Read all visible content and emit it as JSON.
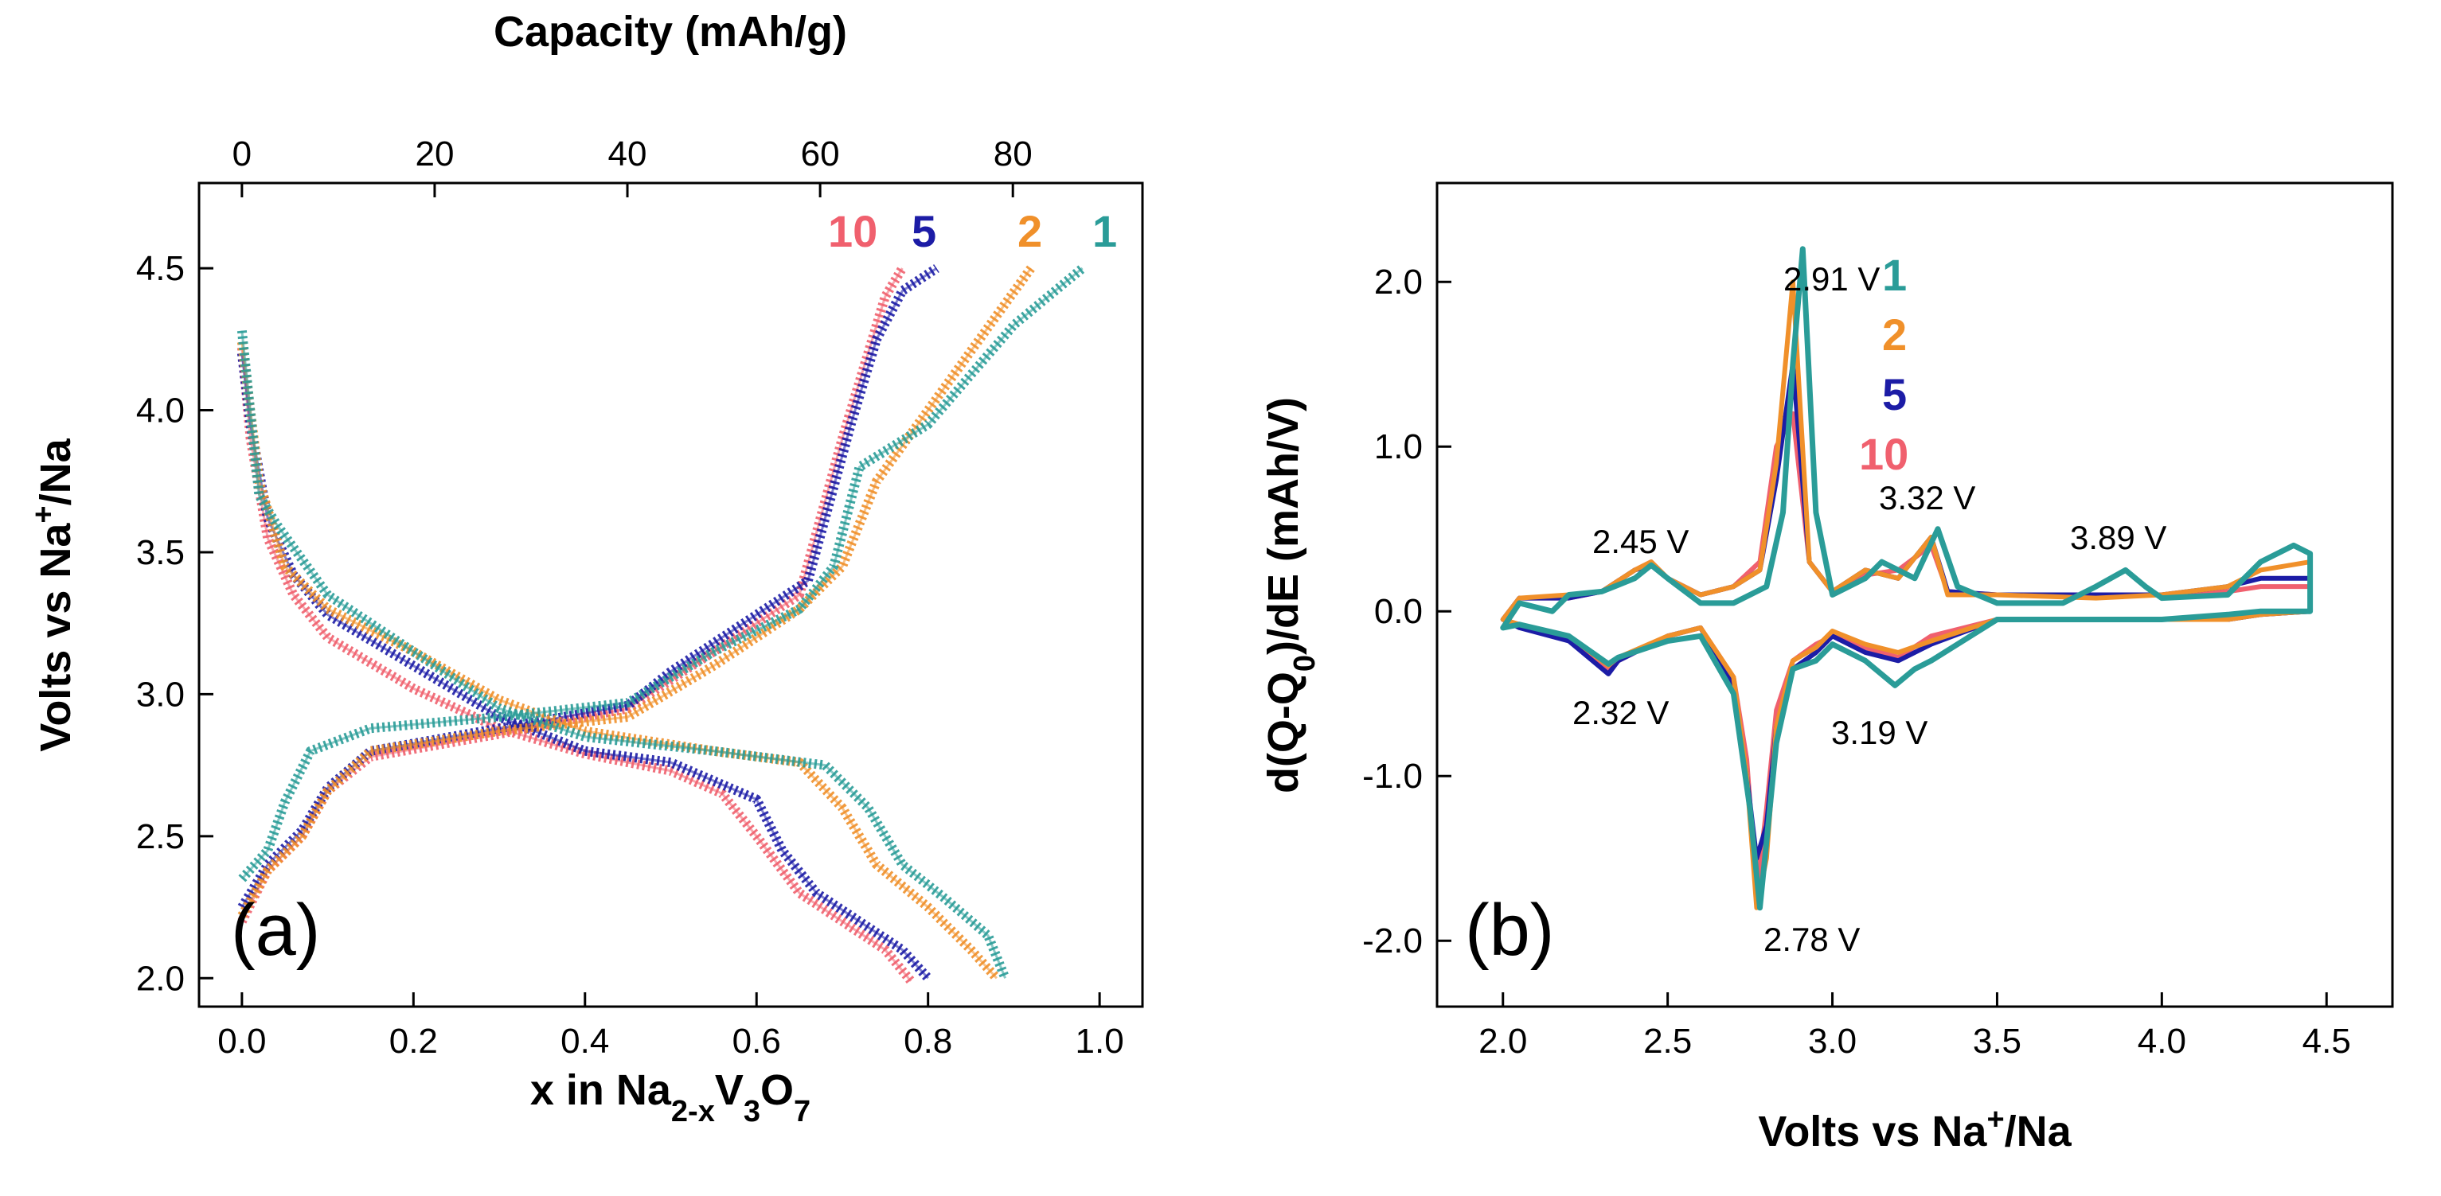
{
  "chart_data": [
    {
      "type": "scatter",
      "panel_label": "(a)",
      "title": "",
      "xlabel": {
        "pre": "x in Na",
        "sub1": "2-x",
        "mid": "V",
        "sub2": "3",
        "mid2": "O",
        "sub3": "7"
      },
      "ylabel": {
        "pre": "Volts vs Na",
        "sup": "+",
        "post": "/Na"
      },
      "x2label": "Capacity (mAh/g)",
      "xlim": [
        -0.05,
        1.05
      ],
      "ylim": [
        1.9,
        4.8
      ],
      "x2lim": [
        -4.45,
        93.45
      ],
      "xticks": [
        "0.0",
        "0.2",
        "0.4",
        "0.6",
        "0.8",
        "1.0"
      ],
      "xtick_values": [
        0.0,
        0.2,
        0.4,
        0.6,
        0.8,
        1.0
      ],
      "yticks": [
        "2.0",
        "2.5",
        "3.0",
        "3.5",
        "4.0",
        "4.5"
      ],
      "ytick_values": [
        2.0,
        2.5,
        3.0,
        3.5,
        4.0,
        4.5
      ],
      "x2ticks": [
        "0",
        "20",
        "40",
        "60",
        "80"
      ],
      "x2tick_values": [
        0,
        20,
        40,
        60,
        80
      ],
      "legend_labels": [
        {
          "text": "10",
          "color": "#f0606e"
        },
        {
          "text": "5",
          "color": "#1c1ca6"
        },
        {
          "text": "2",
          "color": "#f0902a"
        },
        {
          "text": "1",
          "color": "#2a9c98"
        }
      ],
      "series": [
        {
          "name": "10",
          "color": "#f0606e",
          "discharge": [
            [
              0.0,
              4.22
            ],
            [
              0.01,
              3.9
            ],
            [
              0.03,
              3.55
            ],
            [
              0.06,
              3.35
            ],
            [
              0.1,
              3.2
            ],
            [
              0.2,
              3.02
            ],
            [
              0.3,
              2.88
            ],
            [
              0.4,
              2.79
            ],
            [
              0.5,
              2.73
            ],
            [
              0.56,
              2.65
            ],
            [
              0.6,
              2.5
            ],
            [
              0.65,
              2.3
            ],
            [
              0.7,
              2.2
            ],
            [
              0.75,
              2.1
            ],
            [
              0.78,
              1.99
            ]
          ],
          "charge": [
            [
              0.0,
              2.2
            ],
            [
              0.03,
              2.38
            ],
            [
              0.07,
              2.5
            ],
            [
              0.1,
              2.66
            ],
            [
              0.15,
              2.78
            ],
            [
              0.3,
              2.86
            ],
            [
              0.45,
              2.95
            ],
            [
              0.5,
              3.05
            ],
            [
              0.6,
              3.25
            ],
            [
              0.65,
              3.35
            ],
            [
              0.7,
              3.9
            ],
            [
              0.73,
              4.2
            ],
            [
              0.75,
              4.4
            ],
            [
              0.77,
              4.5
            ]
          ]
        },
        {
          "name": "5",
          "color": "#1c1ca6",
          "discharge": [
            [
              0.0,
              4.2
            ],
            [
              0.01,
              3.95
            ],
            [
              0.03,
              3.62
            ],
            [
              0.06,
              3.42
            ],
            [
              0.1,
              3.28
            ],
            [
              0.2,
              3.1
            ],
            [
              0.3,
              2.92
            ],
            [
              0.4,
              2.8
            ],
            [
              0.5,
              2.76
            ],
            [
              0.6,
              2.63
            ],
            [
              0.63,
              2.45
            ],
            [
              0.67,
              2.3
            ],
            [
              0.72,
              2.2
            ],
            [
              0.77,
              2.1
            ],
            [
              0.8,
              2.0
            ]
          ],
          "charge": [
            [
              0.0,
              2.25
            ],
            [
              0.03,
              2.4
            ],
            [
              0.07,
              2.52
            ],
            [
              0.1,
              2.67
            ],
            [
              0.15,
              2.8
            ],
            [
              0.3,
              2.88
            ],
            [
              0.45,
              2.96
            ],
            [
              0.5,
              3.08
            ],
            [
              0.6,
              3.28
            ],
            [
              0.66,
              3.4
            ],
            [
              0.71,
              3.95
            ],
            [
              0.74,
              4.25
            ],
            [
              0.77,
              4.42
            ],
            [
              0.81,
              4.5
            ]
          ]
        },
        {
          "name": "2",
          "color": "#f0902a",
          "discharge": [
            [
              0.0,
              4.24
            ],
            [
              0.02,
              3.75
            ],
            [
              0.05,
              3.45
            ],
            [
              0.1,
              3.3
            ],
            [
              0.2,
              3.15
            ],
            [
              0.3,
              2.98
            ],
            [
              0.4,
              2.87
            ],
            [
              0.55,
              2.8
            ],
            [
              0.65,
              2.76
            ],
            [
              0.7,
              2.6
            ],
            [
              0.74,
              2.4
            ],
            [
              0.8,
              2.25
            ],
            [
              0.85,
              2.1
            ],
            [
              0.88,
              2.0
            ]
          ],
          "charge": [
            [
              0.0,
              2.22
            ],
            [
              0.03,
              2.38
            ],
            [
              0.07,
              2.5
            ],
            [
              0.1,
              2.66
            ],
            [
              0.15,
              2.8
            ],
            [
              0.3,
              2.87
            ],
            [
              0.45,
              2.92
            ],
            [
              0.55,
              3.1
            ],
            [
              0.65,
              3.3
            ],
            [
              0.7,
              3.45
            ],
            [
              0.74,
              3.75
            ],
            [
              0.8,
              4.0
            ],
            [
              0.86,
              4.25
            ],
            [
              0.92,
              4.5
            ]
          ]
        },
        {
          "name": "1",
          "color": "#2a9c98",
          "discharge": [
            [
              0.0,
              4.28
            ],
            [
              0.02,
              3.7
            ],
            [
              0.04,
              3.6
            ],
            [
              0.1,
              3.35
            ],
            [
              0.2,
              3.15
            ],
            [
              0.3,
              2.95
            ],
            [
              0.4,
              2.85
            ],
            [
              0.55,
              2.8
            ],
            [
              0.68,
              2.75
            ],
            [
              0.73,
              2.6
            ],
            [
              0.77,
              2.4
            ],
            [
              0.82,
              2.28
            ],
            [
              0.87,
              2.15
            ],
            [
              0.89,
              2.0
            ]
          ],
          "charge": [
            [
              0.0,
              2.35
            ],
            [
              0.03,
              2.45
            ],
            [
              0.05,
              2.62
            ],
            [
              0.08,
              2.8
            ],
            [
              0.15,
              2.88
            ],
            [
              0.3,
              2.92
            ],
            [
              0.45,
              2.97
            ],
            [
              0.55,
              3.15
            ],
            [
              0.65,
              3.3
            ],
            [
              0.69,
              3.45
            ],
            [
              0.72,
              3.8
            ],
            [
              0.8,
              3.95
            ],
            [
              0.9,
              4.3
            ],
            [
              0.98,
              4.5
            ]
          ]
        }
      ]
    },
    {
      "type": "line",
      "panel_label": "(b)",
      "title": "",
      "xlabel": {
        "pre": "Volts vs Na",
        "sup": "+",
        "post": "/Na"
      },
      "ylabel": {
        "pre": "d(Q-Q",
        "sub": "0",
        "post": ")/dE (mAh/V)"
      },
      "xlim": [
        1.8,
        4.7
      ],
      "ylim": [
        -2.4,
        2.6
      ],
      "xticks": [
        "2.0",
        "2.5",
        "3.0",
        "3.5",
        "4.0",
        "4.5"
      ],
      "xtick_values": [
        2.0,
        2.5,
        3.0,
        3.5,
        4.0,
        4.5
      ],
      "yticks": [
        "-2.0",
        "-1.0",
        "0.0",
        "1.0",
        "2.0"
      ],
      "ytick_values": [
        -2.0,
        -1.0,
        0.0,
        1.0,
        2.0
      ],
      "annotations": [
        {
          "text": "2.91 V",
          "x": 2.91,
          "y": 2.2
        },
        {
          "text": "2.45 V",
          "x": 2.45,
          "y": 0.3
        },
        {
          "text": "3.32 V",
          "x": 3.32,
          "y": 0.5
        },
        {
          "text": "3.89 V",
          "x": 3.89,
          "y": 0.25
        },
        {
          "text": "2.32 V",
          "x": 2.32,
          "y": -0.35
        },
        {
          "text": "3.19 V",
          "x": 3.19,
          "y": -0.45
        },
        {
          "text": "2.78 V",
          "x": 2.78,
          "y": -1.8
        }
      ],
      "legend_labels": [
        {
          "text": "1",
          "color": "#2a9c98"
        },
        {
          "text": "2",
          "color": "#f0902a"
        },
        {
          "text": "5",
          "color": "#1c1ca6"
        },
        {
          "text": "10",
          "color": "#f0606e"
        }
      ],
      "series": [
        {
          "name": "10",
          "color": "#f0606e",
          "x": [
            2.0,
            2.05,
            2.2,
            2.3,
            2.4,
            2.45,
            2.5,
            2.6,
            2.7,
            2.78,
            2.83,
            2.88,
            2.93,
            3.0,
            3.1,
            3.2,
            3.3,
            3.35,
            3.5,
            3.8,
            4.0,
            4.2,
            4.3,
            4.45,
            4.45,
            4.3,
            4.2,
            4.0,
            3.5,
            3.3,
            3.2,
            3.1,
            3.0,
            2.95,
            2.88,
            2.83,
            2.8,
            2.77,
            2.74,
            2.7,
            2.6,
            2.5,
            2.35,
            2.32,
            2.2,
            2.05,
            2.0
          ],
          "y": [
            -0.05,
            0.08,
            0.08,
            0.12,
            0.25,
            0.3,
            0.2,
            0.1,
            0.15,
            0.3,
            1.0,
            1.2,
            0.3,
            0.12,
            0.22,
            0.25,
            0.4,
            0.12,
            0.1,
            0.1,
            0.1,
            0.12,
            0.15,
            0.15,
            0.0,
            -0.02,
            -0.05,
            -0.05,
            -0.05,
            -0.15,
            -0.28,
            -0.22,
            -0.15,
            -0.2,
            -0.3,
            -0.6,
            -1.2,
            -1.7,
            -0.9,
            -0.4,
            -0.1,
            -0.15,
            -0.3,
            -0.35,
            -0.15,
            -0.08,
            -0.05
          ]
        },
        {
          "name": "5",
          "color": "#1c1ca6",
          "x": [
            2.0,
            2.05,
            2.2,
            2.3,
            2.4,
            2.45,
            2.5,
            2.6,
            2.7,
            2.78,
            2.83,
            2.88,
            2.93,
            3.0,
            3.1,
            3.2,
            3.3,
            3.35,
            3.5,
            3.8,
            4.0,
            4.2,
            4.3,
            4.45,
            4.45,
            4.3,
            4.2,
            4.0,
            3.5,
            3.3,
            3.2,
            3.1,
            3.0,
            2.95,
            2.88,
            2.83,
            2.8,
            2.77,
            2.74,
            2.7,
            2.6,
            2.5,
            2.35,
            2.32,
            2.2,
            2.05,
            2.0
          ],
          "y": [
            -0.05,
            0.08,
            0.08,
            0.12,
            0.25,
            0.28,
            0.2,
            0.1,
            0.15,
            0.25,
            0.8,
            1.5,
            0.3,
            0.12,
            0.25,
            0.2,
            0.45,
            0.12,
            0.1,
            0.1,
            0.1,
            0.15,
            0.2,
            0.2,
            0.0,
            -0.02,
            -0.05,
            -0.05,
            -0.05,
            -0.2,
            -0.3,
            -0.25,
            -0.15,
            -0.25,
            -0.35,
            -0.7,
            -1.3,
            -1.5,
            -1.0,
            -0.45,
            -0.1,
            -0.15,
            -0.3,
            -0.38,
            -0.18,
            -0.1,
            -0.05
          ]
        },
        {
          "name": "2",
          "color": "#f0902a",
          "x": [
            2.0,
            2.05,
            2.2,
            2.3,
            2.4,
            2.45,
            2.5,
            2.6,
            2.7,
            2.78,
            2.83,
            2.88,
            2.93,
            3.0,
            3.1,
            3.2,
            3.3,
            3.35,
            3.5,
            3.8,
            4.0,
            4.2,
            4.3,
            4.45,
            4.45,
            4.3,
            4.2,
            4.0,
            3.5,
            3.3,
            3.2,
            3.1,
            3.0,
            2.95,
            2.88,
            2.83,
            2.8,
            2.77,
            2.74,
            2.7,
            2.6,
            2.5,
            2.35,
            2.32,
            2.2,
            2.05,
            2.0
          ],
          "y": [
            -0.05,
            0.08,
            0.1,
            0.12,
            0.25,
            0.3,
            0.2,
            0.1,
            0.15,
            0.25,
            0.9,
            2.0,
            0.3,
            0.12,
            0.25,
            0.2,
            0.45,
            0.1,
            0.1,
            0.08,
            0.1,
            0.15,
            0.25,
            0.3,
            0.0,
            -0.02,
            -0.05,
            -0.05,
            -0.05,
            -0.18,
            -0.25,
            -0.2,
            -0.12,
            -0.22,
            -0.3,
            -0.7,
            -1.5,
            -1.8,
            -1.0,
            -0.4,
            -0.1,
            -0.15,
            -0.28,
            -0.33,
            -0.15,
            -0.08,
            -0.05
          ]
        },
        {
          "name": "1",
          "color": "#2a9c98",
          "x": [
            2.0,
            2.05,
            2.15,
            2.2,
            2.3,
            2.4,
            2.45,
            2.5,
            2.6,
            2.7,
            2.8,
            2.85,
            2.88,
            2.91,
            2.95,
            3.0,
            3.1,
            3.15,
            3.25,
            3.32,
            3.38,
            3.5,
            3.7,
            3.8,
            3.89,
            3.95,
            4.0,
            4.2,
            4.3,
            4.4,
            4.45,
            4.45,
            4.3,
            4.2,
            4.0,
            3.5,
            3.3,
            3.25,
            3.19,
            3.1,
            3.0,
            2.95,
            2.88,
            2.83,
            2.8,
            2.78,
            2.75,
            2.7,
            2.6,
            2.5,
            2.35,
            2.32,
            2.2,
            2.05,
            2.0
          ],
          "y": [
            -0.1,
            0.05,
            0.0,
            0.1,
            0.12,
            0.2,
            0.28,
            0.2,
            0.05,
            0.05,
            0.15,
            0.6,
            1.5,
            2.2,
            0.6,
            0.1,
            0.2,
            0.3,
            0.2,
            0.5,
            0.15,
            0.05,
            0.05,
            0.15,
            0.25,
            0.15,
            0.08,
            0.1,
            0.3,
            0.4,
            0.35,
            0.0,
            0.0,
            -0.02,
            -0.05,
            -0.05,
            -0.3,
            -0.35,
            -0.45,
            -0.3,
            -0.2,
            -0.3,
            -0.35,
            -0.8,
            -1.4,
            -1.8,
            -1.2,
            -0.5,
            -0.15,
            -0.18,
            -0.28,
            -0.32,
            -0.15,
            -0.08,
            -0.1
          ]
        }
      ]
    }
  ]
}
